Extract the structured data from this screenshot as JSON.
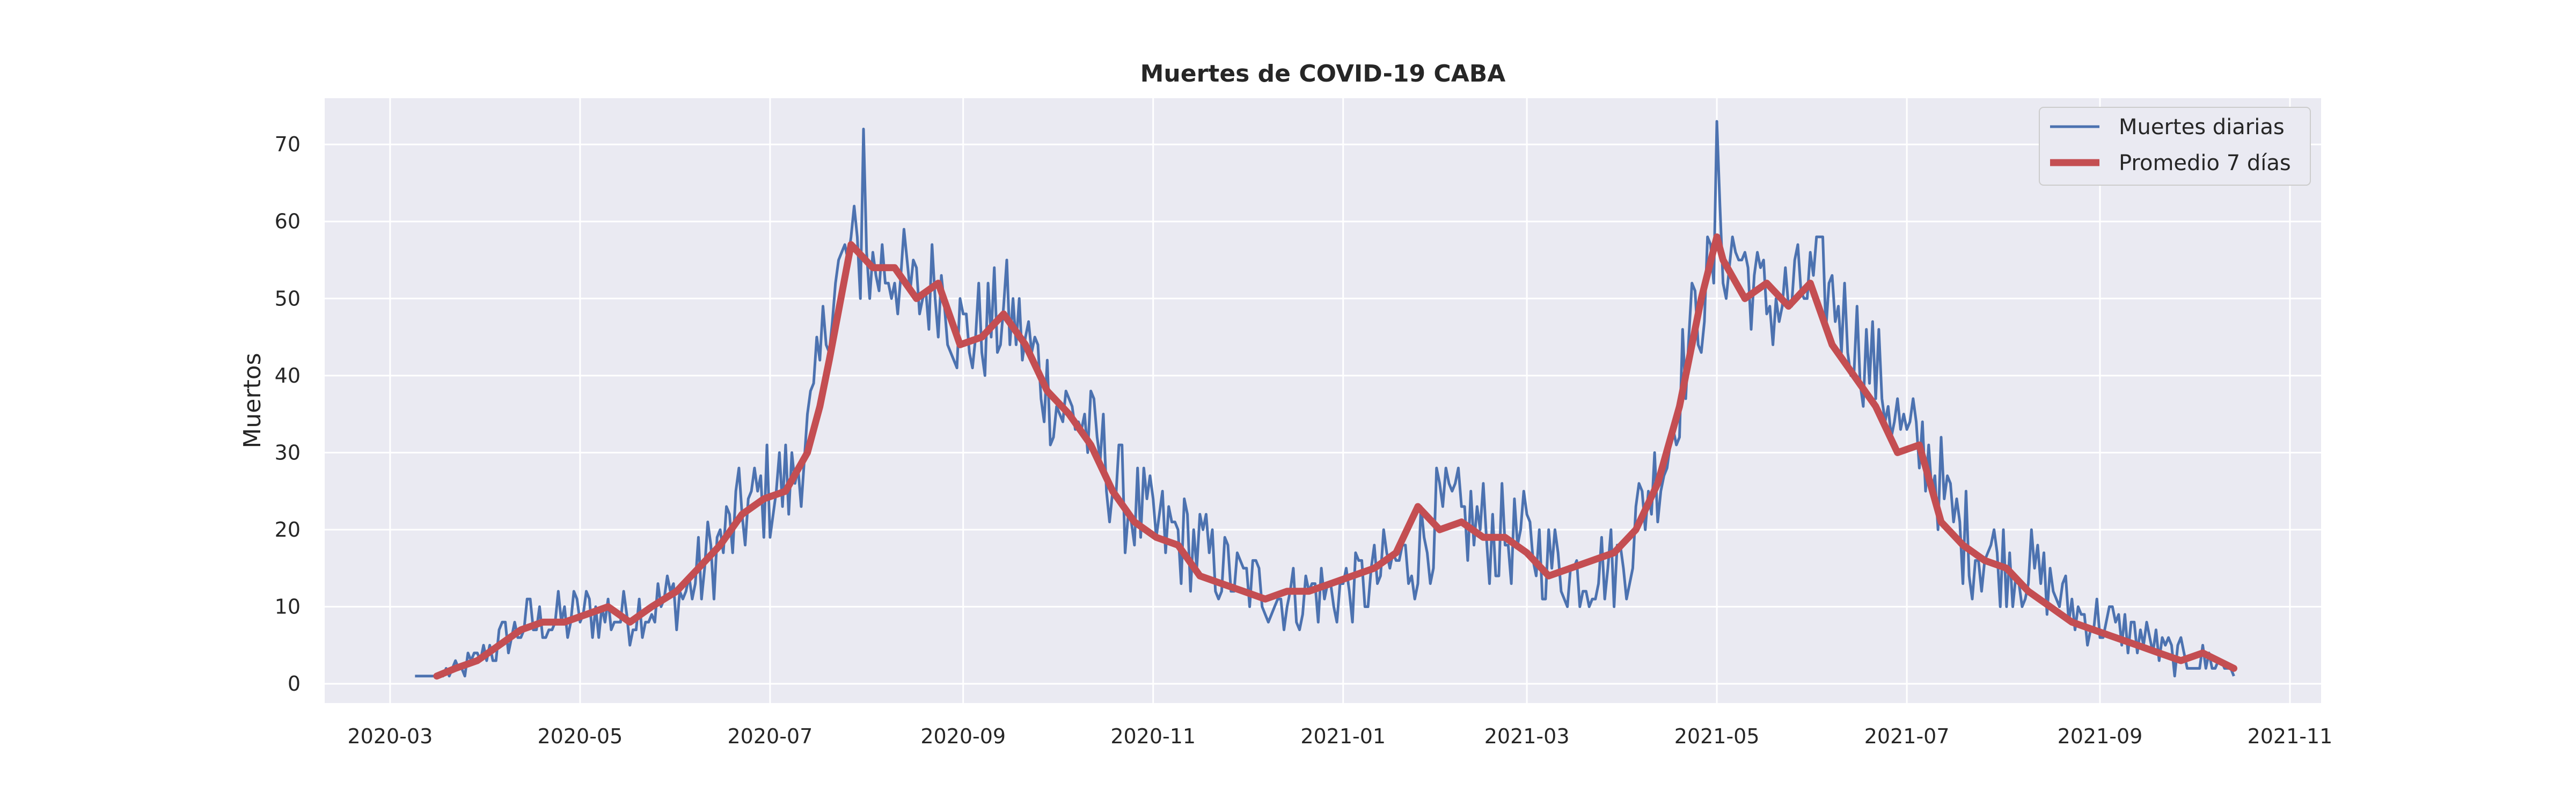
{
  "chart_data": {
    "type": "line",
    "title": "Muertes de COVID-19 CABA",
    "xlabel": "",
    "ylabel": "Muertos",
    "x_start": "2020-03-09",
    "x_end": "2021-10-14",
    "xlim": [
      "2020-02-09",
      "2021-11-11"
    ],
    "ylim": [
      -2.5,
      76
    ],
    "x_ticks": [
      "2020-03-01",
      "2020-05-01",
      "2020-07-01",
      "2020-09-01",
      "2020-11-01",
      "2021-01-01",
      "2021-03-01",
      "2021-05-01",
      "2021-07-01",
      "2021-09-01",
      "2021-11-01"
    ],
    "x_tick_labels": [
      "2020-03",
      "2020-05",
      "2020-07",
      "2020-09",
      "2020-11",
      "2021-01",
      "2021-03",
      "2021-05",
      "2021-07",
      "2021-09",
      "2021-11"
    ],
    "y_ticks": [
      0,
      10,
      20,
      30,
      40,
      50,
      60,
      70
    ],
    "grid": true,
    "legend_position": "top-right",
    "colors": {
      "background": "#eaeaf2",
      "grid": "#ffffff",
      "daily": "#4c72b0",
      "average": "#c44e52"
    },
    "series": [
      {
        "name": "Muertes diarias",
        "sampling": "daily",
        "x": [
          "2020-03-09",
          "2020-03-17",
          "2020-03-25",
          "2020-04-01",
          "2020-04-08",
          "2020-04-15",
          "2020-04-22",
          "2020-05-01",
          "2020-05-08",
          "2020-05-15",
          "2020-05-22",
          "2020-06-01",
          "2020-06-08",
          "2020-06-15",
          "2020-06-22",
          "2020-07-01",
          "2020-07-08",
          "2020-07-15",
          "2020-07-20",
          "2020-07-27",
          "2020-08-03",
          "2020-08-10",
          "2020-08-17",
          "2020-08-24",
          "2020-09-01",
          "2020-09-08",
          "2020-09-15",
          "2020-09-22",
          "2020-10-01",
          "2020-10-08",
          "2020-10-15",
          "2020-10-22",
          "2020-11-01",
          "2020-11-08",
          "2020-11-15",
          "2020-11-22",
          "2020-12-01",
          "2020-12-08",
          "2020-12-15",
          "2020-12-22",
          "2021-01-01",
          "2021-01-08",
          "2021-01-15",
          "2021-01-22",
          "2021-02-01",
          "2021-02-08",
          "2021-02-15",
          "2021-02-22",
          "2021-03-01",
          "2021-03-08",
          "2021-03-15",
          "2021-03-22",
          "2021-04-01",
          "2021-04-08",
          "2021-04-15",
          "2021-04-22",
          "2021-05-01",
          "2021-05-08",
          "2021-05-15",
          "2021-05-22",
          "2021-06-01",
          "2021-06-08",
          "2021-06-15",
          "2021-06-22",
          "2021-07-01",
          "2021-07-08",
          "2021-07-15",
          "2021-07-22",
          "2021-08-01",
          "2021-08-08",
          "2021-08-15",
          "2021-08-22",
          "2021-09-01",
          "2021-09-08",
          "2021-09-15",
          "2021-09-22",
          "2021-10-01",
          "2021-10-08",
          "2021-10-14"
        ],
        "y": [
          1,
          1,
          2,
          4,
          6,
          8,
          8,
          9,
          9,
          9,
          10,
          11,
          14,
          18,
          22,
          25,
          26,
          35,
          50,
          56,
          54,
          54,
          50,
          52,
          45,
          46,
          48,
          44,
          36,
          35,
          30,
          24,
          20,
          19,
          18,
          15,
          13,
          12,
          11,
          12,
          12,
          13,
          15,
          16,
          22,
          21,
          20,
          19,
          18,
          16,
          14,
          15,
          16,
          24,
          30,
          45,
          55,
          56,
          50,
          49,
          52,
          50,
          44,
          40,
          31,
          30,
          22,
          18,
          16,
          15,
          13,
          10,
          8,
          7,
          6,
          4,
          3,
          3,
          2
        ],
        "daily_noise_amplitude": 7,
        "peaks": {
          "2020-07-31": 72,
          "2021-05-01": 73
        }
      },
      {
        "name": "Promedio 7 días",
        "x": [
          "2020-03-16",
          "2020-03-22",
          "2020-03-29",
          "2020-04-05",
          "2020-04-12",
          "2020-04-19",
          "2020-04-26",
          "2020-05-03",
          "2020-05-10",
          "2020-05-17",
          "2020-05-24",
          "2020-06-01",
          "2020-06-08",
          "2020-06-15",
          "2020-06-22",
          "2020-06-29",
          "2020-07-06",
          "2020-07-13",
          "2020-07-17",
          "2020-07-20",
          "2020-07-27",
          "2020-08-03",
          "2020-08-10",
          "2020-08-17",
          "2020-08-24",
          "2020-08-31",
          "2020-09-07",
          "2020-09-14",
          "2020-09-21",
          "2020-09-28",
          "2020-10-05",
          "2020-10-12",
          "2020-10-19",
          "2020-10-26",
          "2020-11-02",
          "2020-11-09",
          "2020-11-16",
          "2020-11-23",
          "2020-11-30",
          "2020-12-07",
          "2020-12-14",
          "2020-12-21",
          "2020-12-28",
          "2021-01-04",
          "2021-01-11",
          "2021-01-18",
          "2021-01-25",
          "2021-02-01",
          "2021-02-08",
          "2021-02-15",
          "2021-02-22",
          "2021-03-01",
          "2021-03-08",
          "2021-03-15",
          "2021-03-22",
          "2021-03-29",
          "2021-04-05",
          "2021-04-12",
          "2021-04-19",
          "2021-04-26",
          "2021-05-01",
          "2021-05-03",
          "2021-05-10",
          "2021-05-17",
          "2021-05-24",
          "2021-05-31",
          "2021-06-07",
          "2021-06-14",
          "2021-06-21",
          "2021-06-28",
          "2021-07-05",
          "2021-07-12",
          "2021-07-19",
          "2021-07-26",
          "2021-08-02",
          "2021-08-09",
          "2021-08-16",
          "2021-08-23",
          "2021-08-30",
          "2021-09-06",
          "2021-09-13",
          "2021-09-20",
          "2021-09-27",
          "2021-10-04",
          "2021-10-14"
        ],
        "y": [
          1,
          2,
          3,
          5,
          7,
          8,
          8,
          9,
          10,
          8,
          10,
          12,
          15,
          18,
          22,
          24,
          25,
          30,
          36,
          42,
          57,
          54,
          54,
          50,
          52,
          44,
          45,
          48,
          44,
          38,
          35,
          31,
          25,
          21,
          19,
          18,
          14,
          13,
          12,
          11,
          12,
          12,
          13,
          14,
          15,
          17,
          23,
          20,
          21,
          19,
          19,
          17,
          14,
          15,
          16,
          17,
          20,
          26,
          36,
          50,
          58,
          55,
          50,
          52,
          49,
          52,
          44,
          40,
          36,
          30,
          31,
          21,
          18,
          16,
          15,
          12,
          10,
          8,
          7,
          6,
          5,
          4,
          3,
          4,
          2
        ]
      }
    ]
  }
}
